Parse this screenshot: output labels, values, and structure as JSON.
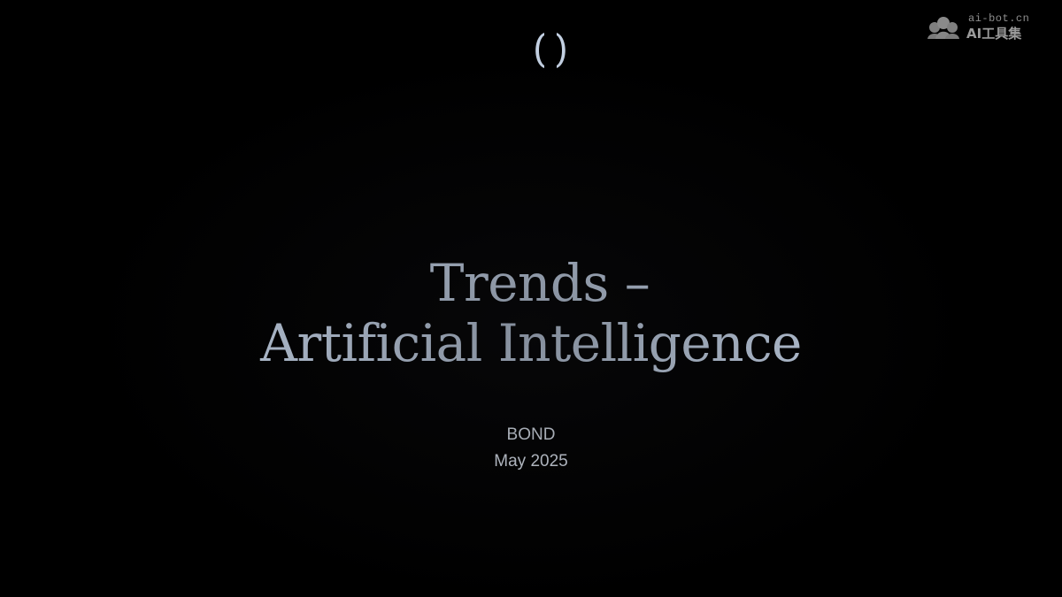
{
  "slide": {
    "title_line1": "Trends –",
    "title_line2": "Artificial Intelligence",
    "organization": "BOND",
    "date": "May 2025",
    "colors": {
      "background": "#000000",
      "title": "#bfcde0",
      "subtitle": "#cfd6e0"
    },
    "logo_icon": "bond-parenthesis-logo"
  },
  "watermark": {
    "url": "ai-bot.cn",
    "name": "AI工具集",
    "icon": "cloud-people-icon"
  }
}
